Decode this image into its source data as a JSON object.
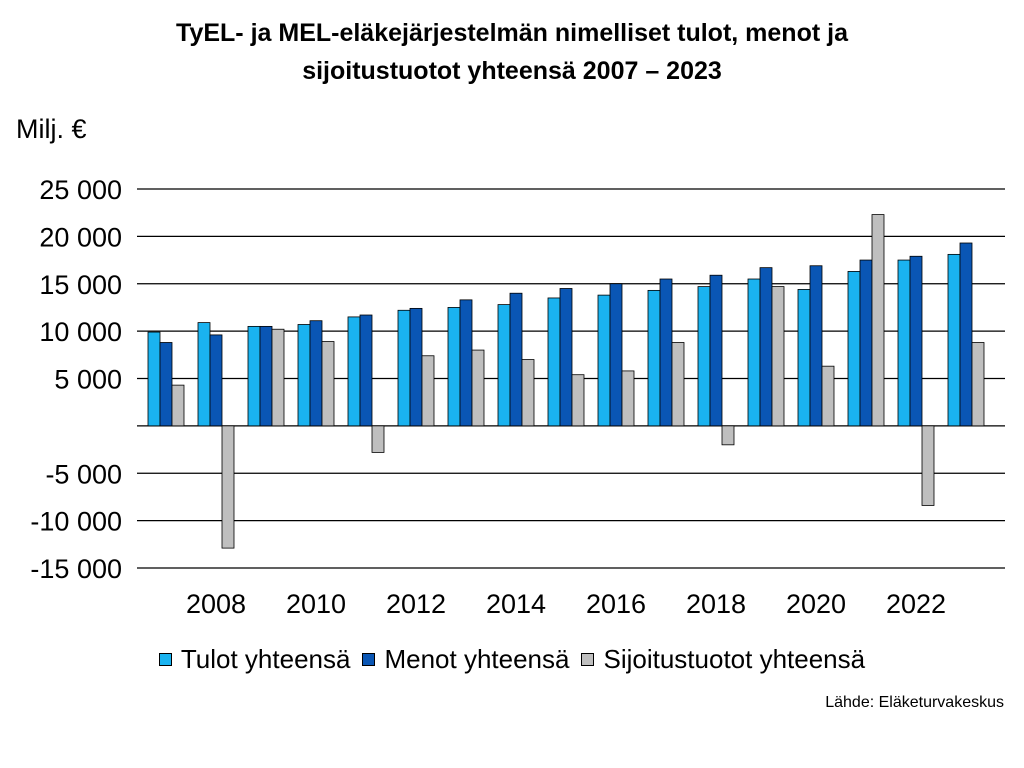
{
  "title_line1": "TyEL- ja MEL-eläkejärjestelmän nimelliset tulot, menot ja",
  "title_line2": "sijoitustuotot yhteensä 2007 – 2023",
  "unit_label": "Milj. €",
  "source": "Lähde: Eläketurvakeskus",
  "chart_data": {
    "type": "bar",
    "title": "TyEL- ja MEL-eläkejärjestelmän nimelliset tulot, menot ja sijoitustuotot yhteensä 2007 – 2023",
    "ylabel": "Milj. €",
    "xlabel": "",
    "ylim": [
      -15000,
      25000
    ],
    "yticks": [
      25000,
      20000,
      15000,
      10000,
      5000,
      0,
      -5000,
      -10000,
      -15000
    ],
    "ytick_labels": [
      "25 000",
      "20 000",
      "15 000",
      "10 000",
      "5 000",
      "",
      "-5 000",
      "-10 000",
      "-15 000"
    ],
    "categories": [
      "2007",
      "2008",
      "2009",
      "2010",
      "2011",
      "2012",
      "2013",
      "2014",
      "2015",
      "2016",
      "2017",
      "2018",
      "2019",
      "2020",
      "2021",
      "2022",
      "2023"
    ],
    "xtick_labels": [
      "",
      "2008",
      "",
      "2010",
      "",
      "2012",
      "",
      "2014",
      "",
      "2016",
      "",
      "2018",
      "",
      "2020",
      "",
      "2022",
      ""
    ],
    "grid": true,
    "legend_position": "bottom",
    "series": [
      {
        "name": "Tulot yhteensä",
        "color": "#1ab3f0",
        "values": [
          9900,
          10900,
          10500,
          10700,
          11500,
          12200,
          12500,
          12800,
          13500,
          13800,
          14300,
          14700,
          15500,
          14400,
          16300,
          17500,
          18100
        ]
      },
      {
        "name": "Menot yhteensä",
        "color": "#0a56b4",
        "values": [
          8800,
          9600,
          10500,
          11100,
          11700,
          12400,
          13300,
          14000,
          14500,
          15000,
          15500,
          15900,
          16700,
          16900,
          17500,
          17900,
          19300
        ]
      },
      {
        "name": "Sijoitustuotot yhteensä",
        "color": "#bfbfbf",
        "values": [
          4300,
          -12900,
          10200,
          8900,
          -2800,
          7400,
          8000,
          7000,
          5400,
          5800,
          8800,
          -2000,
          14700,
          6300,
          22300,
          -8400,
          8800
        ]
      }
    ]
  }
}
